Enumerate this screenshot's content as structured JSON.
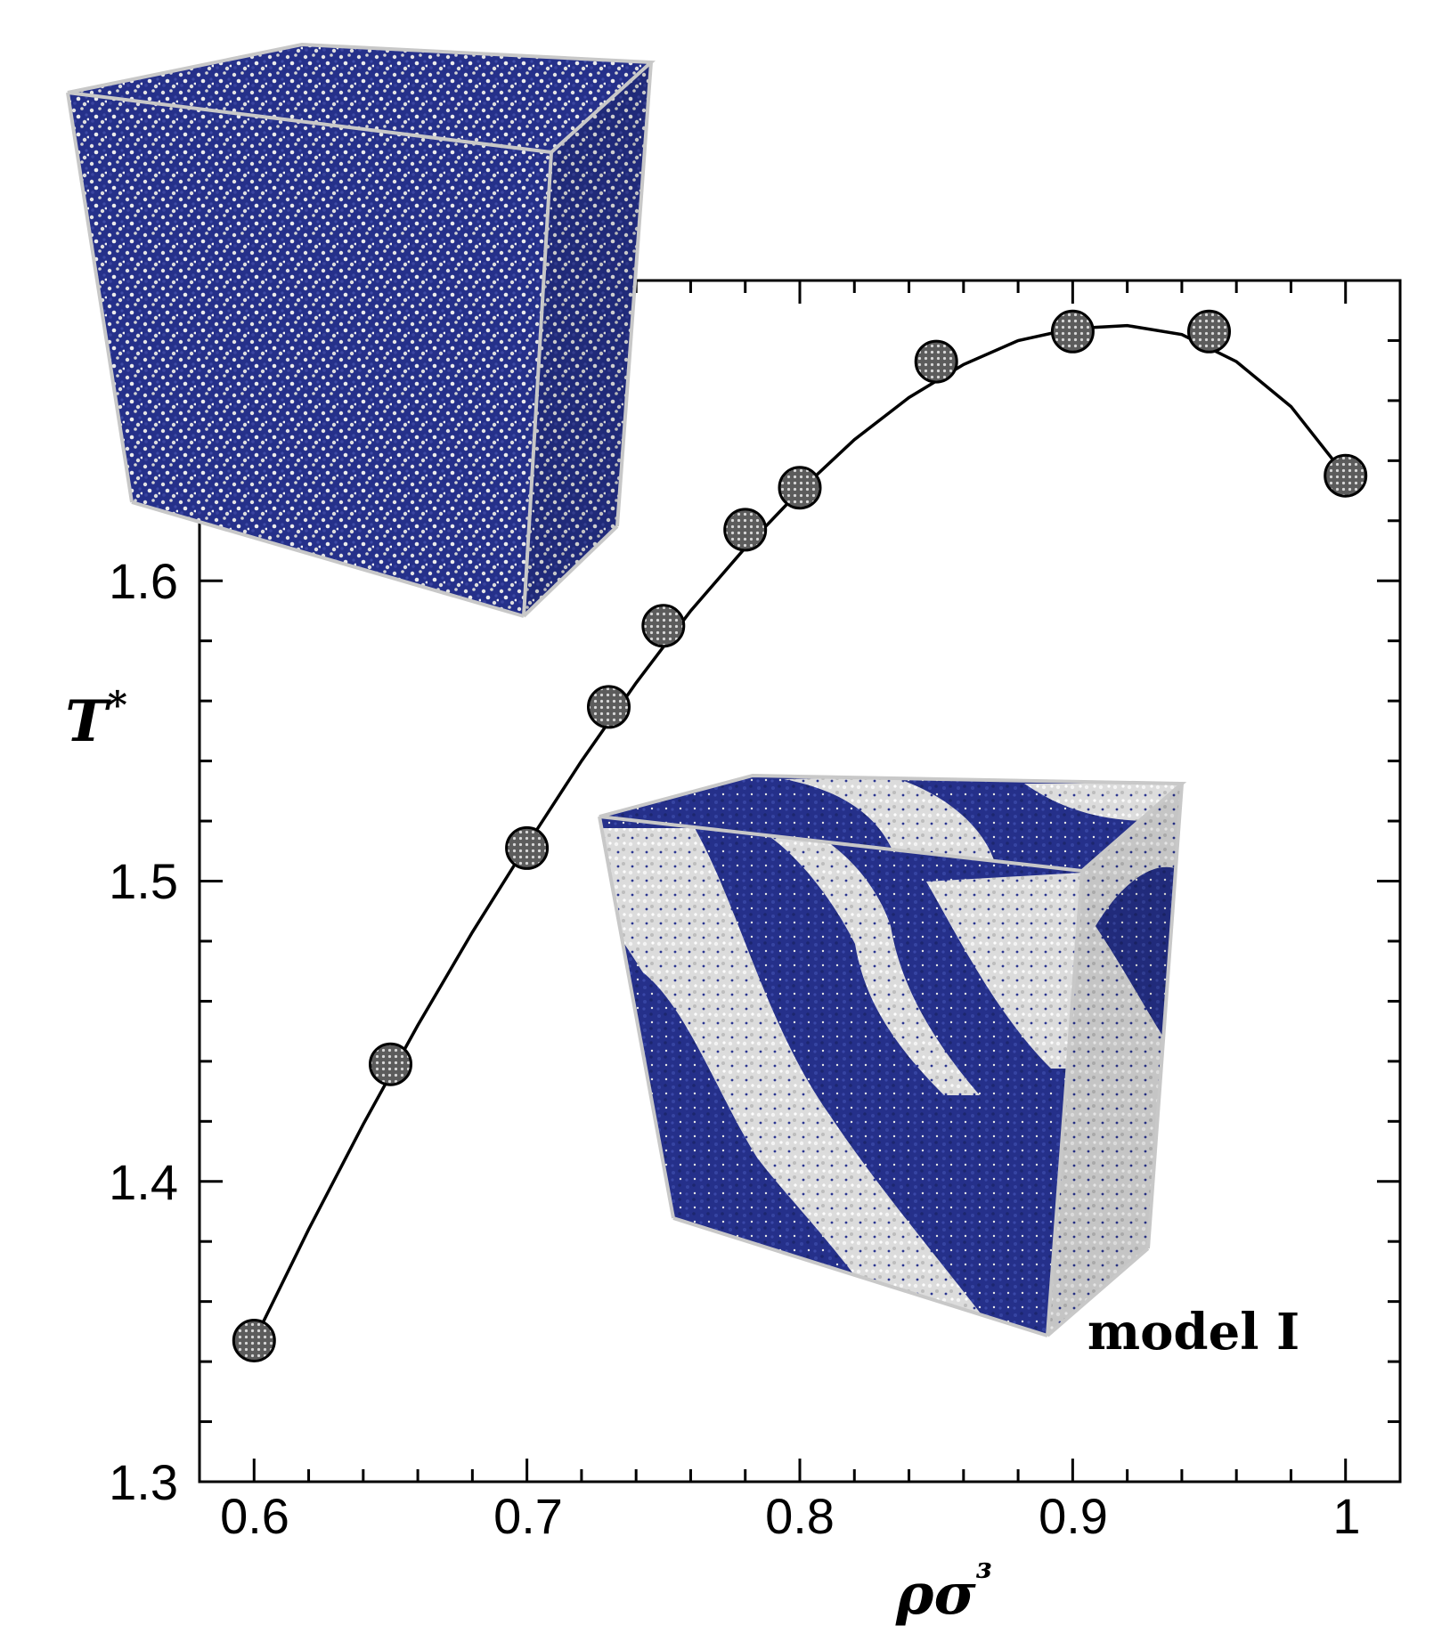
{
  "chart_data": {
    "type": "scatter",
    "title": "",
    "xlabel": "ρσ³",
    "ylabel": "T*",
    "xlim": [
      0.58,
      1.02
    ],
    "ylim": [
      1.3,
      1.7
    ],
    "x_ticks": [
      0.6,
      0.7,
      0.8,
      0.9,
      1
    ],
    "x_tick_labels": [
      "0.6",
      "0.7",
      "0.8",
      "0.9",
      "1"
    ],
    "y_ticks": [
      1.3,
      1.4,
      1.5,
      1.6
    ],
    "y_tick_labels": [
      "1.3",
      "1.4",
      "1.5",
      "1.6"
    ],
    "grid": false,
    "legend": "none",
    "series": [
      {
        "marker": "circle-gray",
        "x": [
          0.6,
          0.65,
          0.7,
          0.73,
          0.75,
          0.78,
          0.8,
          0.85,
          0.9,
          0.95,
          1.0
        ],
        "y": [
          1.347,
          1.439,
          1.511,
          1.558,
          1.585,
          1.617,
          1.631,
          1.673,
          1.683,
          1.683,
          1.635
        ]
      }
    ],
    "fit_curve": {
      "style": "solid-black",
      "x": [
        0.6,
        0.62,
        0.64,
        0.66,
        0.68,
        0.7,
        0.72,
        0.74,
        0.76,
        0.78,
        0.8,
        0.82,
        0.84,
        0.86,
        0.88,
        0.9,
        0.92,
        0.94,
        0.96,
        0.98,
        1.0
      ],
      "y": [
        1.347,
        1.384,
        1.419,
        1.452,
        1.483,
        1.512,
        1.54,
        1.566,
        1.59,
        1.611,
        1.63,
        1.647,
        1.661,
        1.672,
        1.68,
        1.684,
        1.685,
        1.682,
        1.673,
        1.658,
        1.635
      ]
    },
    "annotations": [
      "model I"
    ],
    "insets": [
      {
        "name": "inset-mixed-configuration",
        "description_type": "snapshot"
      },
      {
        "name": "inset-demixed-configuration",
        "description_type": "snapshot"
      }
    ],
    "colors": {
      "particle_a": "#25308a",
      "particle_b": "#e6e6e6",
      "marker_fill": "#5a5a5a",
      "line": "#000000",
      "box_edge": "#c8c8c8"
    }
  }
}
